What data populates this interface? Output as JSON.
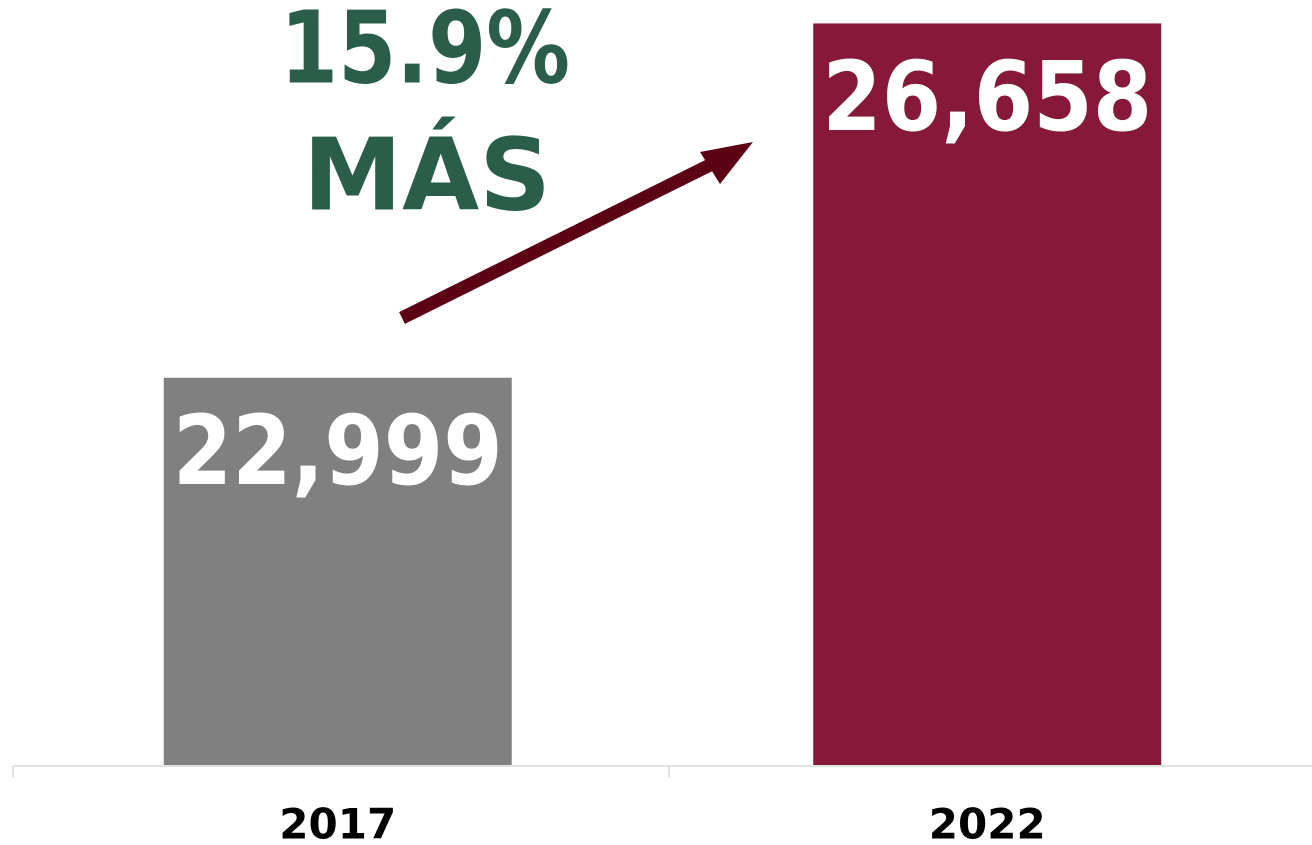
{
  "chart_data": {
    "type": "bar",
    "categories": [
      "2017",
      "2022"
    ],
    "values": [
      22999,
      26658
    ],
    "value_labels": [
      "22,999",
      "26,658"
    ],
    "colors": [
      "#808080",
      "#86183a"
    ],
    "ylim": [
      19000,
      26900
    ],
    "annotation": [
      "15.9%",
      "MÁS"
    ]
  }
}
